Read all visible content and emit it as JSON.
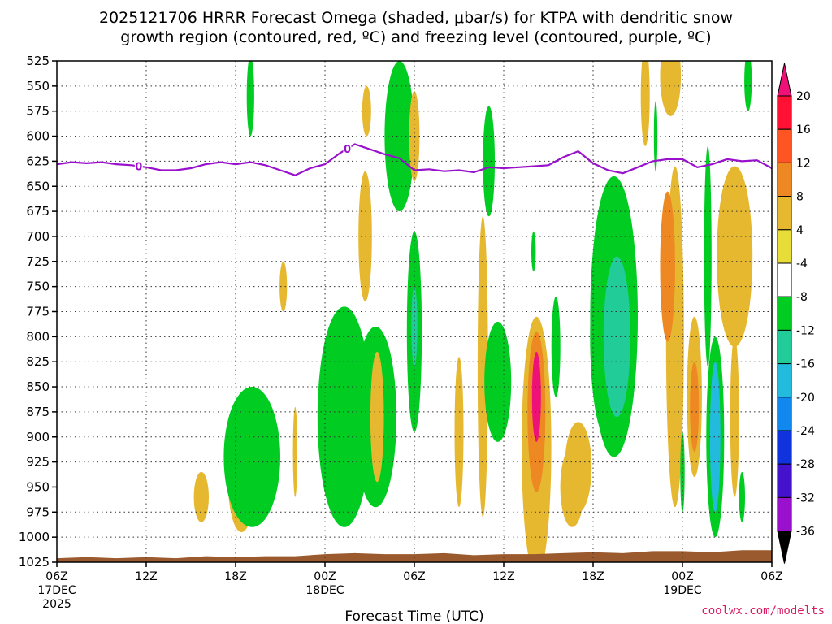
{
  "chart_data": {
    "type": "heatmap",
    "title": [
      "2025121706 HRRR Forecast Omega (shaded, μbar/s) for KTPA with dendritic snow",
      "growth region (contoured, red, ºC) and freezing level (contoured, purple, ºC)"
    ],
    "xlabel": "Forecast Time (UTC)",
    "ylabel": "",
    "credit": "coolwx.com/modelts",
    "y_axis": {
      "unit": "hPa",
      "range": [
        525,
        1025
      ],
      "ticks": [
        525,
        550,
        575,
        600,
        625,
        650,
        675,
        700,
        725,
        750,
        775,
        800,
        825,
        850,
        875,
        900,
        925,
        950,
        975,
        1000,
        1025
      ]
    },
    "x_axis": {
      "unit": "hours since 2025-12-17 06Z",
      "range": [
        0,
        48
      ],
      "ticks": [
        {
          "h": 0,
          "label": "06Z",
          "sub1": "17DEC",
          "sub2": "2025"
        },
        {
          "h": 6,
          "label": "12Z",
          "sub1": "",
          "sub2": ""
        },
        {
          "h": 12,
          "label": "18Z",
          "sub1": "",
          "sub2": ""
        },
        {
          "h": 18,
          "label": "00Z",
          "sub1": "18DEC",
          "sub2": ""
        },
        {
          "h": 24,
          "label": "06Z",
          "sub1": "",
          "sub2": ""
        },
        {
          "h": 30,
          "label": "12Z",
          "sub1": "",
          "sub2": ""
        },
        {
          "h": 36,
          "label": "18Z",
          "sub1": "",
          "sub2": ""
        },
        {
          "h": 42,
          "label": "00Z",
          "sub1": "19DEC",
          "sub2": ""
        },
        {
          "h": 48,
          "label": "06Z",
          "sub1": "",
          "sub2": ""
        }
      ]
    },
    "colorbar": {
      "levels": [
        20,
        16,
        12,
        8,
        4,
        -4,
        -8,
        -12,
        -16,
        -20,
        -24,
        -28,
        -32,
        -36
      ],
      "level_labels": [
        "20",
        "16",
        "12",
        "8",
        "4",
        "-4",
        "-8",
        "-12",
        "-16",
        "-20",
        "-24",
        "-28",
        "-32",
        "-36"
      ],
      "colors": [
        "#ff1133",
        "#ff5522",
        "#ee8822",
        "#e6b830",
        "#e8dc38",
        "#ffffff",
        "#00cc22",
        "#22cc99",
        "#22bbdd",
        "#1188ee",
        "#1133dd",
        "#4411cc",
        "#9911cc",
        "#aaaaaa"
      ],
      "top_color": "#ee1177",
      "bottom_color": "#000000"
    },
    "freezing_level": {
      "label": "0",
      "label_positions_h": [
        5.5,
        19.5
      ],
      "color": "#9911cc",
      "points": [
        [
          0,
          628
        ],
        [
          1,
          626
        ],
        [
          2,
          627
        ],
        [
          3,
          626
        ],
        [
          4,
          628
        ],
        [
          5,
          629
        ],
        [
          6,
          631
        ],
        [
          7,
          634
        ],
        [
          8,
          634
        ],
        [
          9,
          632
        ],
        [
          10,
          628
        ],
        [
          11,
          626
        ],
        [
          12,
          628
        ],
        [
          13,
          626
        ],
        [
          14,
          629
        ],
        [
          15,
          634
        ],
        [
          16,
          639
        ],
        [
          17,
          632
        ],
        [
          18,
          628
        ],
        [
          19,
          617
        ],
        [
          20,
          608
        ],
        [
          21,
          613
        ],
        [
          22,
          618
        ],
        [
          23,
          622
        ],
        [
          24,
          634
        ],
        [
          25,
          633
        ],
        [
          26,
          635
        ],
        [
          27,
          634
        ],
        [
          28,
          636
        ],
        [
          29,
          631
        ],
        [
          30,
          632
        ],
        [
          31,
          631
        ],
        [
          32,
          630
        ],
        [
          33,
          629
        ],
        [
          34,
          621
        ],
        [
          35,
          615
        ],
        [
          36,
          627
        ],
        [
          37,
          634
        ],
        [
          38,
          637
        ],
        [
          39,
          631
        ],
        [
          40,
          625
        ],
        [
          41,
          623
        ],
        [
          42,
          623
        ],
        [
          43,
          631
        ],
        [
          44,
          628
        ],
        [
          45,
          623
        ],
        [
          46,
          625
        ],
        [
          47,
          624
        ],
        [
          48,
          632
        ]
      ]
    },
    "omega_blobs": [
      {
        "h": 13.0,
        "p": 560,
        "rh": 0.25,
        "rp": 40,
        "v": -6
      },
      {
        "h": 9.7,
        "p": 960,
        "rh": 0.5,
        "rp": 25,
        "v": 5
      },
      {
        "h": 12.4,
        "p": 945,
        "rh": 0.9,
        "rp": 50,
        "v": 5
      },
      {
        "h": 13.1,
        "p": 920,
        "rh": 1.9,
        "rp": 70,
        "v": -6
      },
      {
        "h": 15.2,
        "p": 750,
        "rh": 0.25,
        "rp": 25,
        "v": 5
      },
      {
        "h": 16.0,
        "p": 915,
        "rh": 0.15,
        "rp": 45,
        "v": 5
      },
      {
        "h": 19.3,
        "p": 880,
        "rh": 1.8,
        "rp": 110,
        "v": -6
      },
      {
        "h": 21.4,
        "p": 880,
        "rh": 1.4,
        "rp": 90,
        "v": -6
      },
      {
        "h": 20.7,
        "p": 700,
        "rh": 0.45,
        "rp": 65,
        "v": 5
      },
      {
        "h": 21.5,
        "p": 880,
        "rh": 0.45,
        "rp": 65,
        "v": 5
      },
      {
        "h": 20.8,
        "p": 575,
        "rh": 0.3,
        "rp": 25,
        "v": 5
      },
      {
        "h": 23.0,
        "p": 600,
        "rh": 1.0,
        "rp": 75,
        "v": -6
      },
      {
        "h": 24.0,
        "p": 600,
        "rh": 0.35,
        "rp": 45,
        "v": 5
      },
      {
        "h": 24.0,
        "p": 795,
        "rh": 0.5,
        "rp": 100,
        "v": -6
      },
      {
        "h": 24.0,
        "p": 790,
        "rh": 0.2,
        "rp": 40,
        "v": -10
      },
      {
        "h": 27.0,
        "p": 895,
        "rh": 0.3,
        "rp": 75,
        "v": 5
      },
      {
        "h": 28.6,
        "p": 830,
        "rh": 0.35,
        "rp": 150,
        "v": 5
      },
      {
        "h": 29.0,
        "p": 625,
        "rh": 0.4,
        "rp": 55,
        "v": -6
      },
      {
        "h": 29.6,
        "p": 845,
        "rh": 0.9,
        "rp": 60,
        "v": -6
      },
      {
        "h": 32.0,
        "p": 715,
        "rh": 0.15,
        "rp": 20,
        "v": -6
      },
      {
        "h": 32.2,
        "p": 910,
        "rh": 1.0,
        "rp": 130,
        "v": 5
      },
      {
        "h": 32.2,
        "p": 875,
        "rh": 0.6,
        "rp": 80,
        "v": 10
      },
      {
        "h": 32.2,
        "p": 860,
        "rh": 0.3,
        "rp": 45,
        "v": 21
      },
      {
        "h": 33.5,
        "p": 810,
        "rh": 0.3,
        "rp": 50,
        "v": -6
      },
      {
        "h": 34.6,
        "p": 950,
        "rh": 0.8,
        "rp": 40,
        "v": 5
      },
      {
        "h": 36.9,
        "p": 800,
        "rh": 1.1,
        "rp": 100,
        "v": -6
      },
      {
        "h": 37.4,
        "p": 780,
        "rh": 1.6,
        "rp": 140,
        "v": -6
      },
      {
        "h": 37.6,
        "p": 800,
        "rh": 0.9,
        "rp": 80,
        "v": -10
      },
      {
        "h": 35.0,
        "p": 930,
        "rh": 0.9,
        "rp": 45,
        "v": 5
      },
      {
        "h": 39.5,
        "p": 560,
        "rh": 0.3,
        "rp": 50,
        "v": 5
      },
      {
        "h": 40.2,
        "p": 600,
        "rh": 0.12,
        "rp": 35,
        "v": -6
      },
      {
        "h": 41.5,
        "p": 800,
        "rh": 0.6,
        "rp": 170,
        "v": 5
      },
      {
        "h": 41.2,
        "p": 540,
        "rh": 0.7,
        "rp": 40,
        "v": 5
      },
      {
        "h": 41.0,
        "p": 730,
        "rh": 0.5,
        "rp": 75,
        "v": 10
      },
      {
        "h": 42.8,
        "p": 860,
        "rh": 0.5,
        "rp": 80,
        "v": 5
      },
      {
        "h": 42.8,
        "p": 870,
        "rh": 0.3,
        "rp": 45,
        "v": 10
      },
      {
        "h": 42.0,
        "p": 935,
        "rh": 0.15,
        "rp": 40,
        "v": -6
      },
      {
        "h": 43.7,
        "p": 720,
        "rh": 0.25,
        "rp": 110,
        "v": -6
      },
      {
        "h": 44.2,
        "p": 900,
        "rh": 0.6,
        "rp": 100,
        "v": -6
      },
      {
        "h": 44.2,
        "p": 900,
        "rh": 0.35,
        "rp": 75,
        "v": -12
      },
      {
        "h": 45.5,
        "p": 720,
        "rh": 1.2,
        "rp": 90,
        "v": 5
      },
      {
        "h": 45.5,
        "p": 880,
        "rh": 0.3,
        "rp": 80,
        "v": 5
      },
      {
        "h": 46.0,
        "p": 960,
        "rh": 0.2,
        "rp": 25,
        "v": -6
      },
      {
        "h": 46.4,
        "p": 545,
        "rh": 0.25,
        "rp": 30,
        "v": -6
      }
    ],
    "terrain": {
      "color": "#9b5a2e",
      "points": [
        [
          0,
          1021
        ],
        [
          2,
          1020
        ],
        [
          4,
          1021
        ],
        [
          6,
          1020
        ],
        [
          8,
          1021
        ],
        [
          10,
          1019
        ],
        [
          12,
          1020
        ],
        [
          14,
          1019
        ],
        [
          16,
          1019
        ],
        [
          18,
          1017
        ],
        [
          20,
          1016
        ],
        [
          22,
          1017
        ],
        [
          24,
          1017
        ],
        [
          26,
          1016
        ],
        [
          28,
          1018
        ],
        [
          30,
          1017
        ],
        [
          32,
          1017
        ],
        [
          34,
          1016
        ],
        [
          36,
          1015
        ],
        [
          38,
          1016
        ],
        [
          40,
          1014
        ],
        [
          42,
          1014
        ],
        [
          44,
          1015
        ],
        [
          46,
          1013
        ],
        [
          48,
          1013
        ]
      ]
    }
  }
}
